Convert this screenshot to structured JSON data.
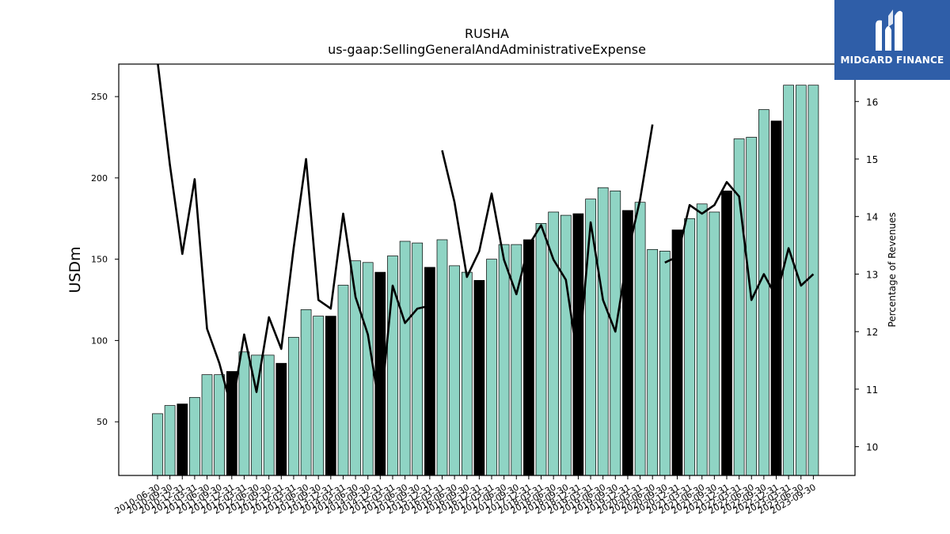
{
  "chart_data": {
    "type": "bar",
    "title": "RUSHA",
    "subtitle": "us-gaap:SellingGeneralAndAdministrativeExpense",
    "ylabel": "USDm",
    "y2label": "Percentage of Revenues",
    "ylim": [
      17,
      270
    ],
    "y2lim": [
      9.5,
      16.65
    ],
    "yticks": [
      50,
      100,
      150,
      200,
      250
    ],
    "y2ticks": [
      10,
      11,
      12,
      13,
      14,
      15,
      16
    ],
    "categories": [
      "2010-06-30",
      "2010-09-30",
      "2010-12-31",
      "2011-03-31",
      "2011-06-30",
      "2011-09-30",
      "2011-12-31",
      "2012-03-31",
      "2012-06-30",
      "2012-09-30",
      "2012-12-31",
      "2013-03-31",
      "2013-06-30",
      "2013-09-30",
      "2013-12-31",
      "2014-03-31",
      "2014-06-30",
      "2014-09-30",
      "2014-12-31",
      "2015-03-31",
      "2015-06-30",
      "2015-09-30",
      "2015-12-31",
      "2016-03-31",
      "2016-06-30",
      "2016-09-30",
      "2016-12-31",
      "2017-03-31",
      "2017-06-30",
      "2017-09-30",
      "2017-12-31",
      "2018-03-31",
      "2018-06-30",
      "2018-09-30",
      "2018-12-31",
      "2019-03-31",
      "2019-06-30",
      "2019-09-30",
      "2019-12-31",
      "2020-03-31",
      "2020-06-30",
      "2020-09-30",
      "2020-12-31",
      "2021-03-31",
      "2021-06-30",
      "2021-09-30",
      "2021-12-31",
      "2022-03-31",
      "2022-06-30",
      "2022-09-30",
      "2022-12-31",
      "2023-03-31",
      "2023-06-30",
      "2023-09-30"
    ],
    "series": [
      {
        "name": "",
        "values": [
          55,
          60,
          61,
          65,
          79,
          79,
          81,
          93,
          91,
          91,
          86,
          102,
          119,
          115,
          115,
          134,
          149,
          148,
          142,
          152,
          161,
          160,
          145,
          162,
          146,
          142,
          137,
          150,
          159,
          159,
          162,
          172,
          179,
          177,
          178,
          187,
          194,
          192,
          180,
          185,
          156,
          155,
          168,
          175,
          184,
          179,
          192,
          224,
          225,
          242,
          235,
          257,
          257,
          257
        ],
        "highlight": [
          false,
          false,
          true,
          false,
          false,
          false,
          true,
          false,
          false,
          false,
          true,
          false,
          false,
          false,
          true,
          false,
          false,
          false,
          true,
          false,
          false,
          false,
          true,
          false,
          false,
          false,
          true,
          false,
          false,
          false,
          true,
          false,
          false,
          false,
          true,
          false,
          false,
          false,
          true,
          false,
          false,
          false,
          true,
          false,
          false,
          false,
          true,
          false,
          false,
          false,
          true,
          false,
          false,
          false
        ],
        "color": "#8fd4c4",
        "highlight_color": "#000000"
      },
      {
        "name": "",
        "type": "line",
        "axis": "right",
        "color": "#000000",
        "values": [
          16.7,
          14.9,
          13.35,
          14.65,
          12.05,
          11.45,
          10.65,
          11.95,
          10.95,
          12.25,
          11.7,
          13.45,
          15.0,
          12.55,
          12.4,
          14.05,
          12.6,
          11.95,
          10.6,
          12.8,
          12.15,
          12.4,
          12.45,
          15.15,
          14.25,
          12.95,
          13.4,
          14.4,
          13.25,
          12.65,
          13.5,
          13.85,
          13.25,
          12.9,
          11.45,
          13.9,
          12.55,
          12.0,
          13.35,
          14.3,
          15.6,
          13.2,
          13.3,
          14.2,
          14.05,
          14.2,
          14.6,
          14.35,
          12.55,
          13.0,
          12.6,
          13.45,
          12.8,
          13.0
        ],
        "gaps": [
          22,
          40
        ]
      }
    ]
  },
  "logo": {
    "text": "MIDGARD FINANCE",
    "name": "midgard-finance-logo"
  }
}
